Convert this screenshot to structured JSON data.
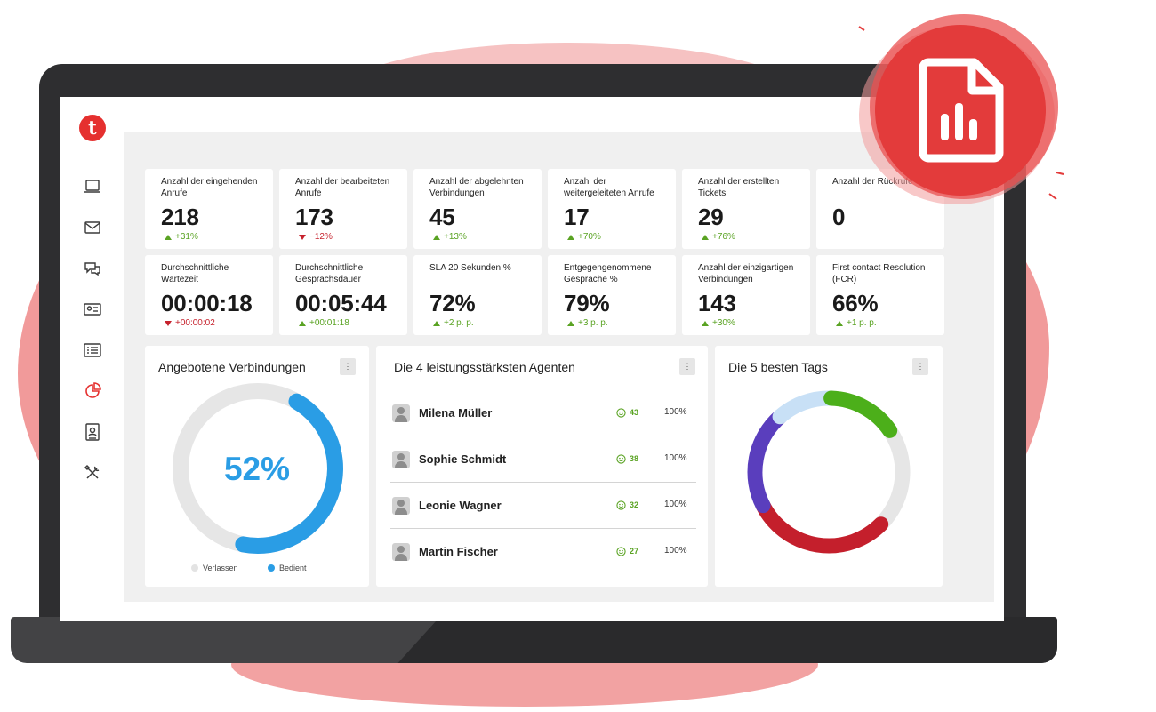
{
  "colors": {
    "brand": "#e5302f",
    "accent_blue": "#2a9de5",
    "positive": "#5aa323",
    "negative": "#c6222d",
    "donut_track": "#e6e6e6"
  },
  "app": {
    "logo_letter": "t"
  },
  "sidebar": {
    "icons": [
      "monitor-icon",
      "mail-icon",
      "chat-icon",
      "contact-card-icon",
      "list-icon",
      "analytics-pie-icon",
      "address-book-icon",
      "tools-icon"
    ],
    "active": "analytics-pie-icon"
  },
  "kpis": [
    {
      "label": "Anzahl der eingehenden Anrufe",
      "value": "218",
      "delta": "+31%",
      "trend": "up"
    },
    {
      "label": "Anzahl der bearbeiteten Anrufe",
      "value": "173",
      "delta": "−12%",
      "trend": "down"
    },
    {
      "label": "Anzahl der abgelehnten Verbindungen",
      "value": "45",
      "delta": "+13%",
      "trend": "up"
    },
    {
      "label": "Anzahl der weitergeleiteten Anrufe",
      "value": "17",
      "delta": "+70%",
      "trend": "up"
    },
    {
      "label": "Anzahl der erstellten Tickets",
      "value": "29",
      "delta": "+76%",
      "trend": "up"
    },
    {
      "label": "Anzahl der Rückrufe",
      "value": "0",
      "delta": "",
      "trend": "none"
    },
    {
      "label": "Durchschnittliche Wartezeit",
      "value": "00:00:18",
      "delta": "+00:00:02",
      "trend": "down"
    },
    {
      "label": "Durchschnittliche Gesprächsdauer",
      "value": "00:05:44",
      "delta": "+00:01:18",
      "trend": "up"
    },
    {
      "label": "SLA 20 Sekunden %",
      "value": "72%",
      "delta": "+2 p. p.",
      "trend": "up"
    },
    {
      "label": "Entgegengenommene Gespräche %",
      "value": "79%",
      "delta": "+3 p. p.",
      "trend": "up"
    },
    {
      "label": "Anzahl der einzigartigen Verbindungen",
      "value": "143",
      "delta": "+30%",
      "trend": "up"
    },
    {
      "label": "First contact Resolution (FCR)",
      "value": "66%",
      "delta": "+1 p. p.",
      "trend": "up"
    }
  ],
  "connections_panel": {
    "title": "Angebotene Verbindungen",
    "menu_glyph": "⋮",
    "percent_label": "52%",
    "served_fraction": 0.52,
    "legend": [
      {
        "label": "Verlassen",
        "color": "#e3e3e3"
      },
      {
        "label": "Bedient",
        "color": "#2a9de5"
      }
    ]
  },
  "agents_panel": {
    "title": "Die 4 leistungsstärksten Agenten",
    "menu_glyph": "⋮",
    "agents": [
      {
        "name": "Milena Müller",
        "count": "43",
        "percent": "100%"
      },
      {
        "name": "Sophie Schmidt",
        "count": "38",
        "percent": "100%"
      },
      {
        "name": "Leonie Wagner",
        "count": "32",
        "percent": "100%"
      },
      {
        "name": "Martin Fischer",
        "count": "27",
        "percent": "100%"
      }
    ]
  },
  "tags_panel": {
    "title": "Die 5 besten Tags",
    "menu_glyph": "⋮",
    "segments": [
      {
        "color": "#c41f2c",
        "share": 0.3
      },
      {
        "color": "#5a3ebd",
        "share": 0.21
      },
      {
        "color": "#c8e0f6",
        "share": 0.12
      },
      {
        "color": "#4caf1a",
        "share": 0.15
      },
      {
        "color": "#e6e6e6",
        "share": 0.22
      }
    ]
  }
}
